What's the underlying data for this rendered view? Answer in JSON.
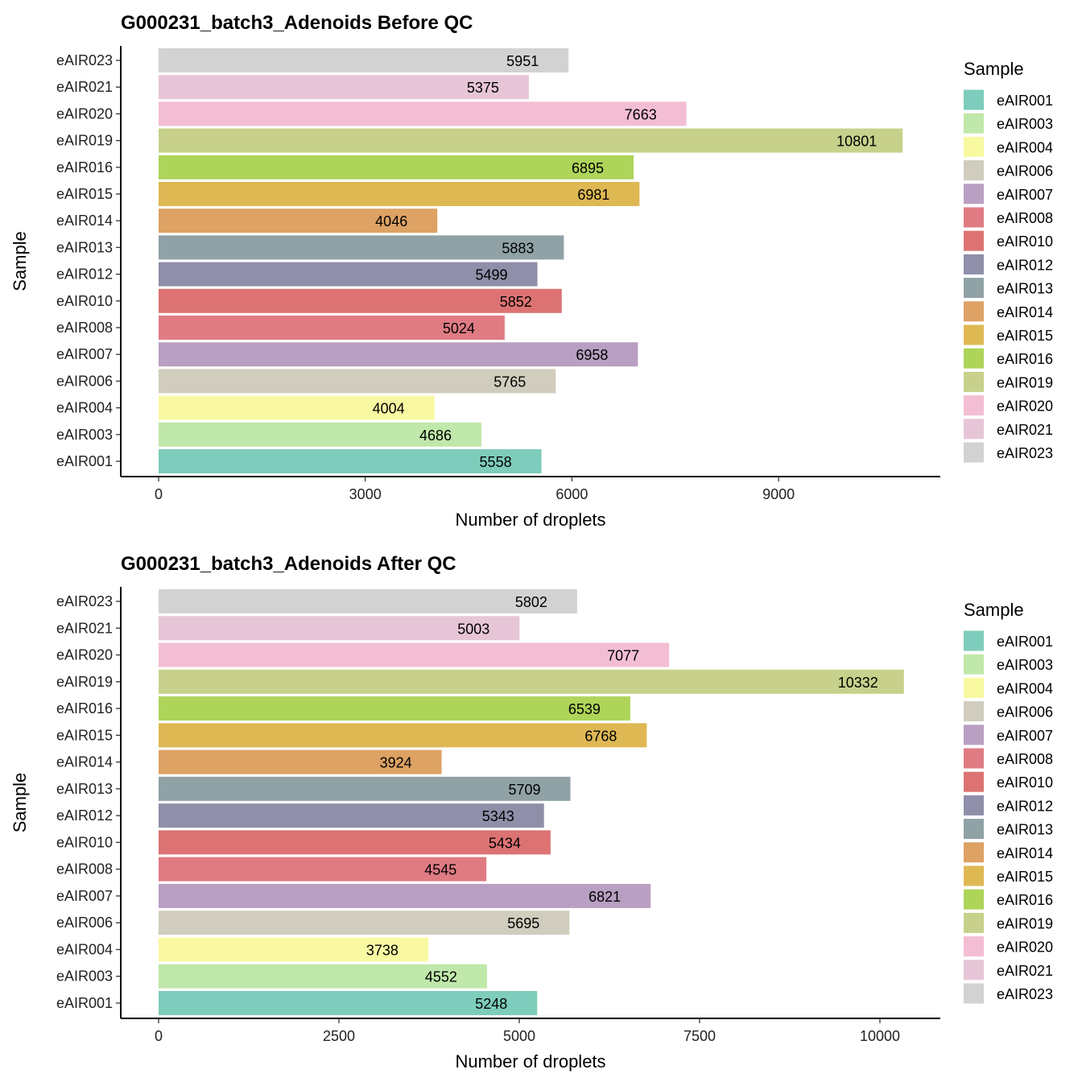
{
  "colors": {
    "eAIR001": "#7ECCBB",
    "eAIR003": "#C0E8AA",
    "eAIR004": "#F9F9A2",
    "eAIR006": "#D0CDBE",
    "eAIR007": "#B99FC2",
    "eAIR008": "#E07B83",
    "eAIR010": "#DC7372",
    "eAIR012": "#8F8FAA",
    "eAIR013": "#90A2A6",
    "eAIR014": "#DDA264",
    "eAIR015": "#DEB853",
    "eAIR016": "#AED459",
    "eAIR019": "#C7D18B",
    "eAIR020": "#F3BED3",
    "eAIR021": "#E6C6D6",
    "eAIR023": "#D2D2D2"
  },
  "chart_data": [
    {
      "type": "bar",
      "orientation": "horizontal",
      "title": "G000231_batch3_Adenoids Before QC",
      "xlabel": "Number of droplets",
      "ylabel": "Sample",
      "legend_title": "Sample",
      "legend_position": "right",
      "grid": false,
      "xlim": [
        -550,
        11350
      ],
      "xticks": [
        0,
        3000,
        6000,
        9000
      ],
      "categories": [
        "eAIR001",
        "eAIR003",
        "eAIR004",
        "eAIR006",
        "eAIR007",
        "eAIR008",
        "eAIR010",
        "eAIR012",
        "eAIR013",
        "eAIR014",
        "eAIR015",
        "eAIR016",
        "eAIR019",
        "eAIR020",
        "eAIR021",
        "eAIR023"
      ],
      "values": [
        5558,
        4686,
        4004,
        5765,
        6958,
        5024,
        5852,
        5499,
        5883,
        4046,
        6981,
        6895,
        10801,
        7663,
        5375,
        5951
      ]
    },
    {
      "type": "bar",
      "orientation": "horizontal",
      "title": "G000231_batch3_Adenoids After QC",
      "xlabel": "Number of droplets",
      "ylabel": "Sample",
      "legend_title": "Sample",
      "legend_position": "right",
      "grid": false,
      "xlim": [
        -530,
        10850
      ],
      "xticks": [
        0,
        2500,
        5000,
        7500,
        10000
      ],
      "categories": [
        "eAIR001",
        "eAIR003",
        "eAIR004",
        "eAIR006",
        "eAIR007",
        "eAIR008",
        "eAIR010",
        "eAIR012",
        "eAIR013",
        "eAIR014",
        "eAIR015",
        "eAIR016",
        "eAIR019",
        "eAIR020",
        "eAIR021",
        "eAIR023"
      ],
      "values": [
        5248,
        4552,
        3738,
        5695,
        6821,
        4545,
        5434,
        5343,
        5709,
        3924,
        6768,
        6539,
        10332,
        7077,
        5003,
        5802
      ]
    }
  ]
}
